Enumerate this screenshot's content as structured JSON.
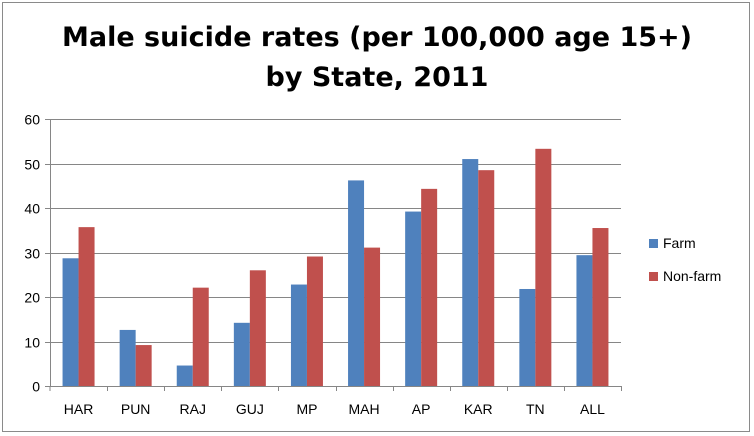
{
  "chart_data": {
    "type": "bar",
    "title_line1": "Male suicide rates (per 100,000  age 15+)",
    "title_line2": "by State, 2011",
    "categories": [
      "HAR",
      "PUN",
      "RAJ",
      "GUJ",
      "MP",
      "MAH",
      "AP",
      "KAR",
      "TN",
      "ALL"
    ],
    "series": [
      {
        "name": "Farm",
        "color": "#4F81BD",
        "values": [
          28.7,
          12.6,
          4.6,
          14.2,
          22.8,
          46.2,
          39.2,
          51.0,
          21.8,
          29.4
        ]
      },
      {
        "name": "Non-farm",
        "color": "#C0504D",
        "values": [
          35.7,
          9.2,
          22.1,
          26.0,
          29.1,
          31.1,
          44.3,
          48.5,
          53.3,
          35.5
        ]
      }
    ],
    "yticks": [
      "0",
      "10",
      "20",
      "30",
      "40",
      "50",
      "60"
    ],
    "ylim": [
      0,
      60
    ],
    "xlabel": "",
    "ylabel": "",
    "grid": true,
    "legend_position": "right"
  }
}
